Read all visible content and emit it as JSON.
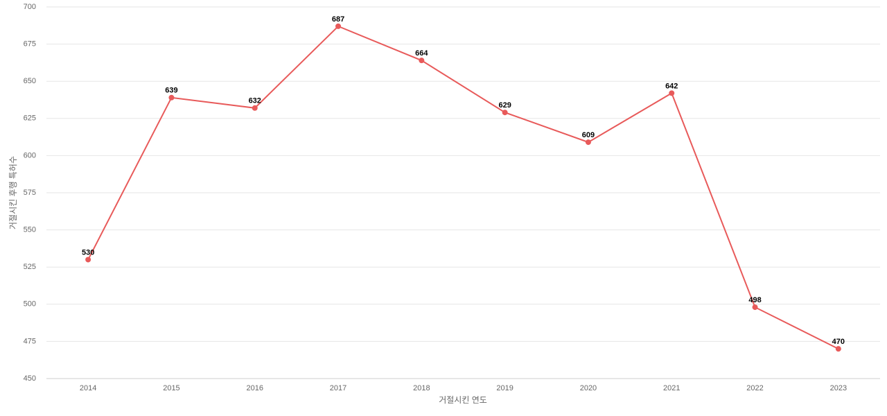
{
  "chart_data": {
    "type": "line",
    "x_label": "거절시킨 연도",
    "y_label": "거절시킨 후행 특허수",
    "categories": [
      "2014",
      "2015",
      "2016",
      "2017",
      "2018",
      "2019",
      "2020",
      "2021",
      "2022",
      "2023"
    ],
    "values": [
      530,
      639,
      632,
      687,
      664,
      629,
      609,
      642,
      498,
      470
    ],
    "color": "#e85a5a",
    "ylim": [
      450,
      700
    ],
    "yticks": [
      450,
      475,
      500,
      525,
      550,
      575,
      600,
      625,
      650,
      675,
      700
    ],
    "grid": true
  }
}
